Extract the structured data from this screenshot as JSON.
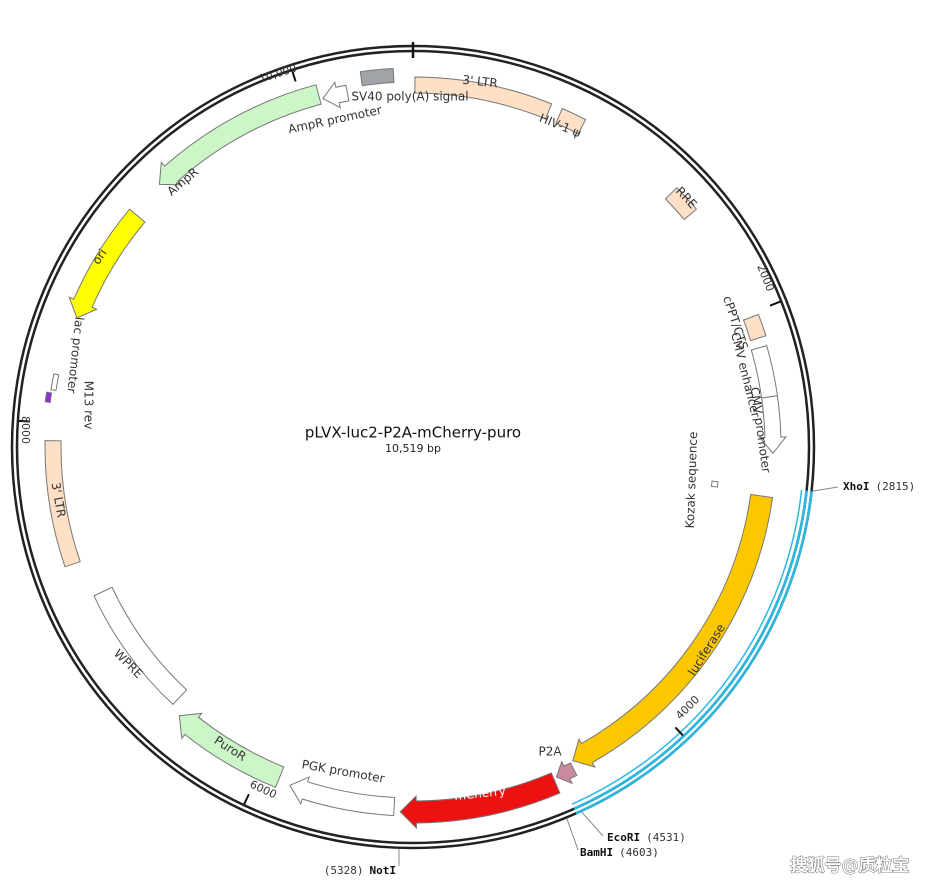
{
  "title": "pLVX-luc2-P2A-mCherry-puro",
  "length": "10,519 bp",
  "ticks": [
    "10,000",
    "2000",
    "4000",
    "6000",
    "8000"
  ],
  "features": [
    {
      "label": "3' LTR"
    },
    {
      "label": "HIV-1 ψ"
    },
    {
      "label": "RRE"
    },
    {
      "label": "cPPT/CTS"
    },
    {
      "label": "CMV enhancer"
    },
    {
      "label": "CMV promoter"
    },
    {
      "label": "Kozak sequence"
    },
    {
      "label": "luciferase"
    },
    {
      "label": "P2A"
    },
    {
      "label": "mCherry"
    },
    {
      "label": "PGK promoter"
    },
    {
      "label": "PuroR"
    },
    {
      "label": "WPRE"
    },
    {
      "label": "3' LTR"
    },
    {
      "label": "M13 rev"
    },
    {
      "label": "lac promoter"
    },
    {
      "label": "ori"
    },
    {
      "label": "AmpR"
    },
    {
      "label": "AmpR promoter"
    },
    {
      "label": "SV40 poly(A) signal"
    }
  ],
  "sites": [
    {
      "name": "XhoI",
      "position": "(2815)"
    },
    {
      "name": "EcoRI",
      "position": "(4531)"
    },
    {
      "name": "BamHI",
      "position": "(4603)"
    },
    {
      "name": "NotI",
      "position": "(5328)"
    }
  ],
  "watermark": "搜狐号@质粒宝"
}
